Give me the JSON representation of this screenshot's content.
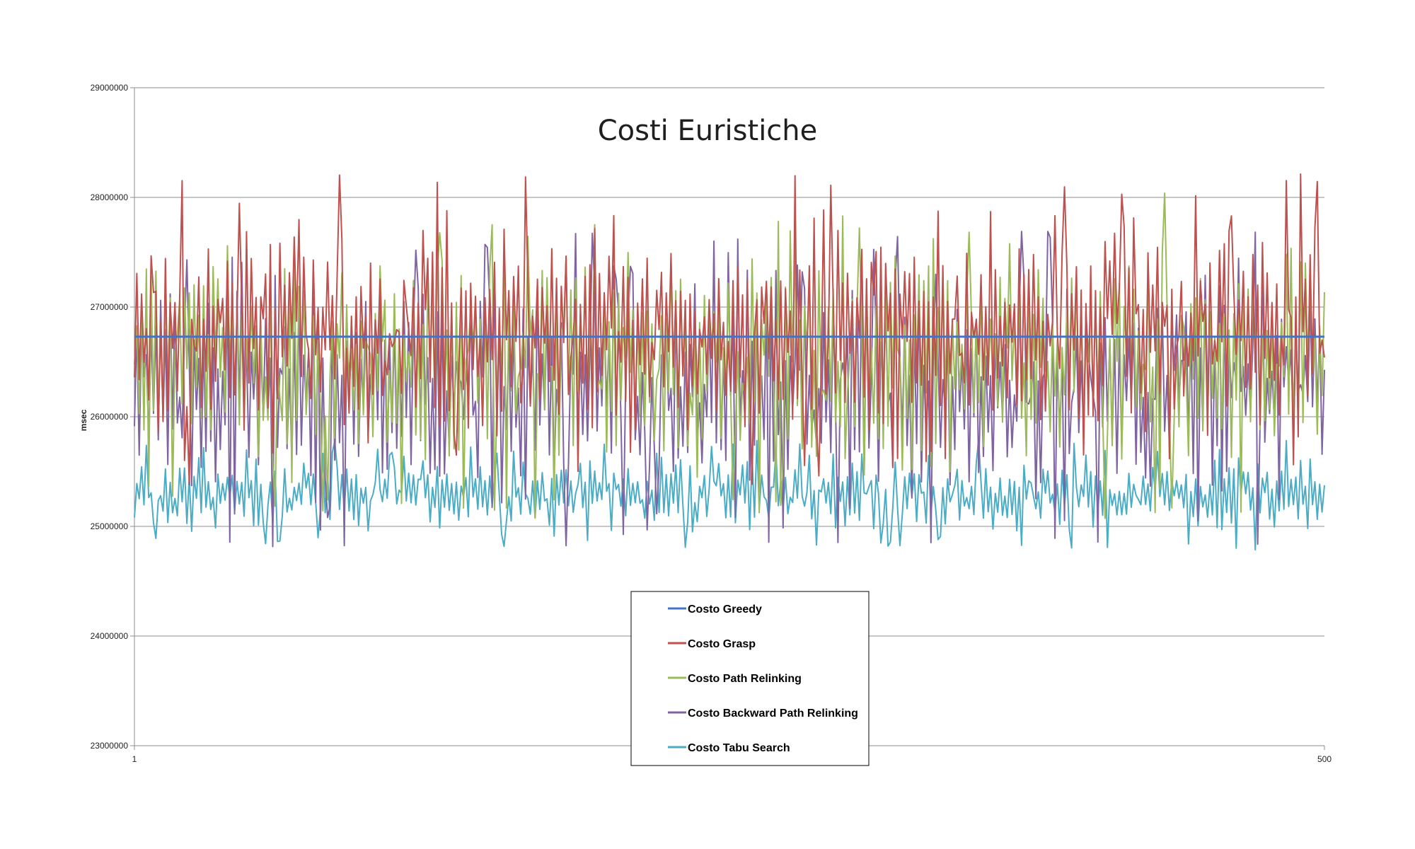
{
  "chart_data": {
    "type": "line",
    "title": "Costi Euristiche",
    "xlabel": "",
    "ylabel": "msec",
    "x": {
      "start": 1,
      "end": 500,
      "tick_labels": [
        "1",
        "500"
      ]
    },
    "ylim": [
      23000000,
      29000000
    ],
    "yticks": [
      23000000,
      24000000,
      25000000,
      26000000,
      27000000,
      28000000,
      29000000
    ],
    "ytick_labels": [
      "23000000",
      "24000000",
      "25000000",
      "26000000",
      "27000000",
      "28000000",
      "29000000"
    ],
    "grid": "horizontal",
    "legend_position": "bottom-center",
    "series": [
      {
        "name": "Costo Greedy",
        "color": "#4472C4",
        "min": 26730000,
        "max": 26730000,
        "mean": 26730000,
        "constant": true
      },
      {
        "name": "Costo Grasp",
        "color": "#C0504D",
        "min": 25300000,
        "max": 28220000,
        "mean": 26550000
      },
      {
        "name": "Costo Path Relinking",
        "color": "#9BBB59",
        "min": 25050000,
        "max": 28060000,
        "mean": 26050000
      },
      {
        "name": "Costo Backward Path Relinking",
        "color": "#8064A2",
        "min": 24800000,
        "max": 27690000,
        "mean": 26050000
      },
      {
        "name": "Costo Tabu Search",
        "color": "#4BACC6",
        "min": 24780000,
        "max": 25800000,
        "mean": 25050000
      }
    ]
  }
}
